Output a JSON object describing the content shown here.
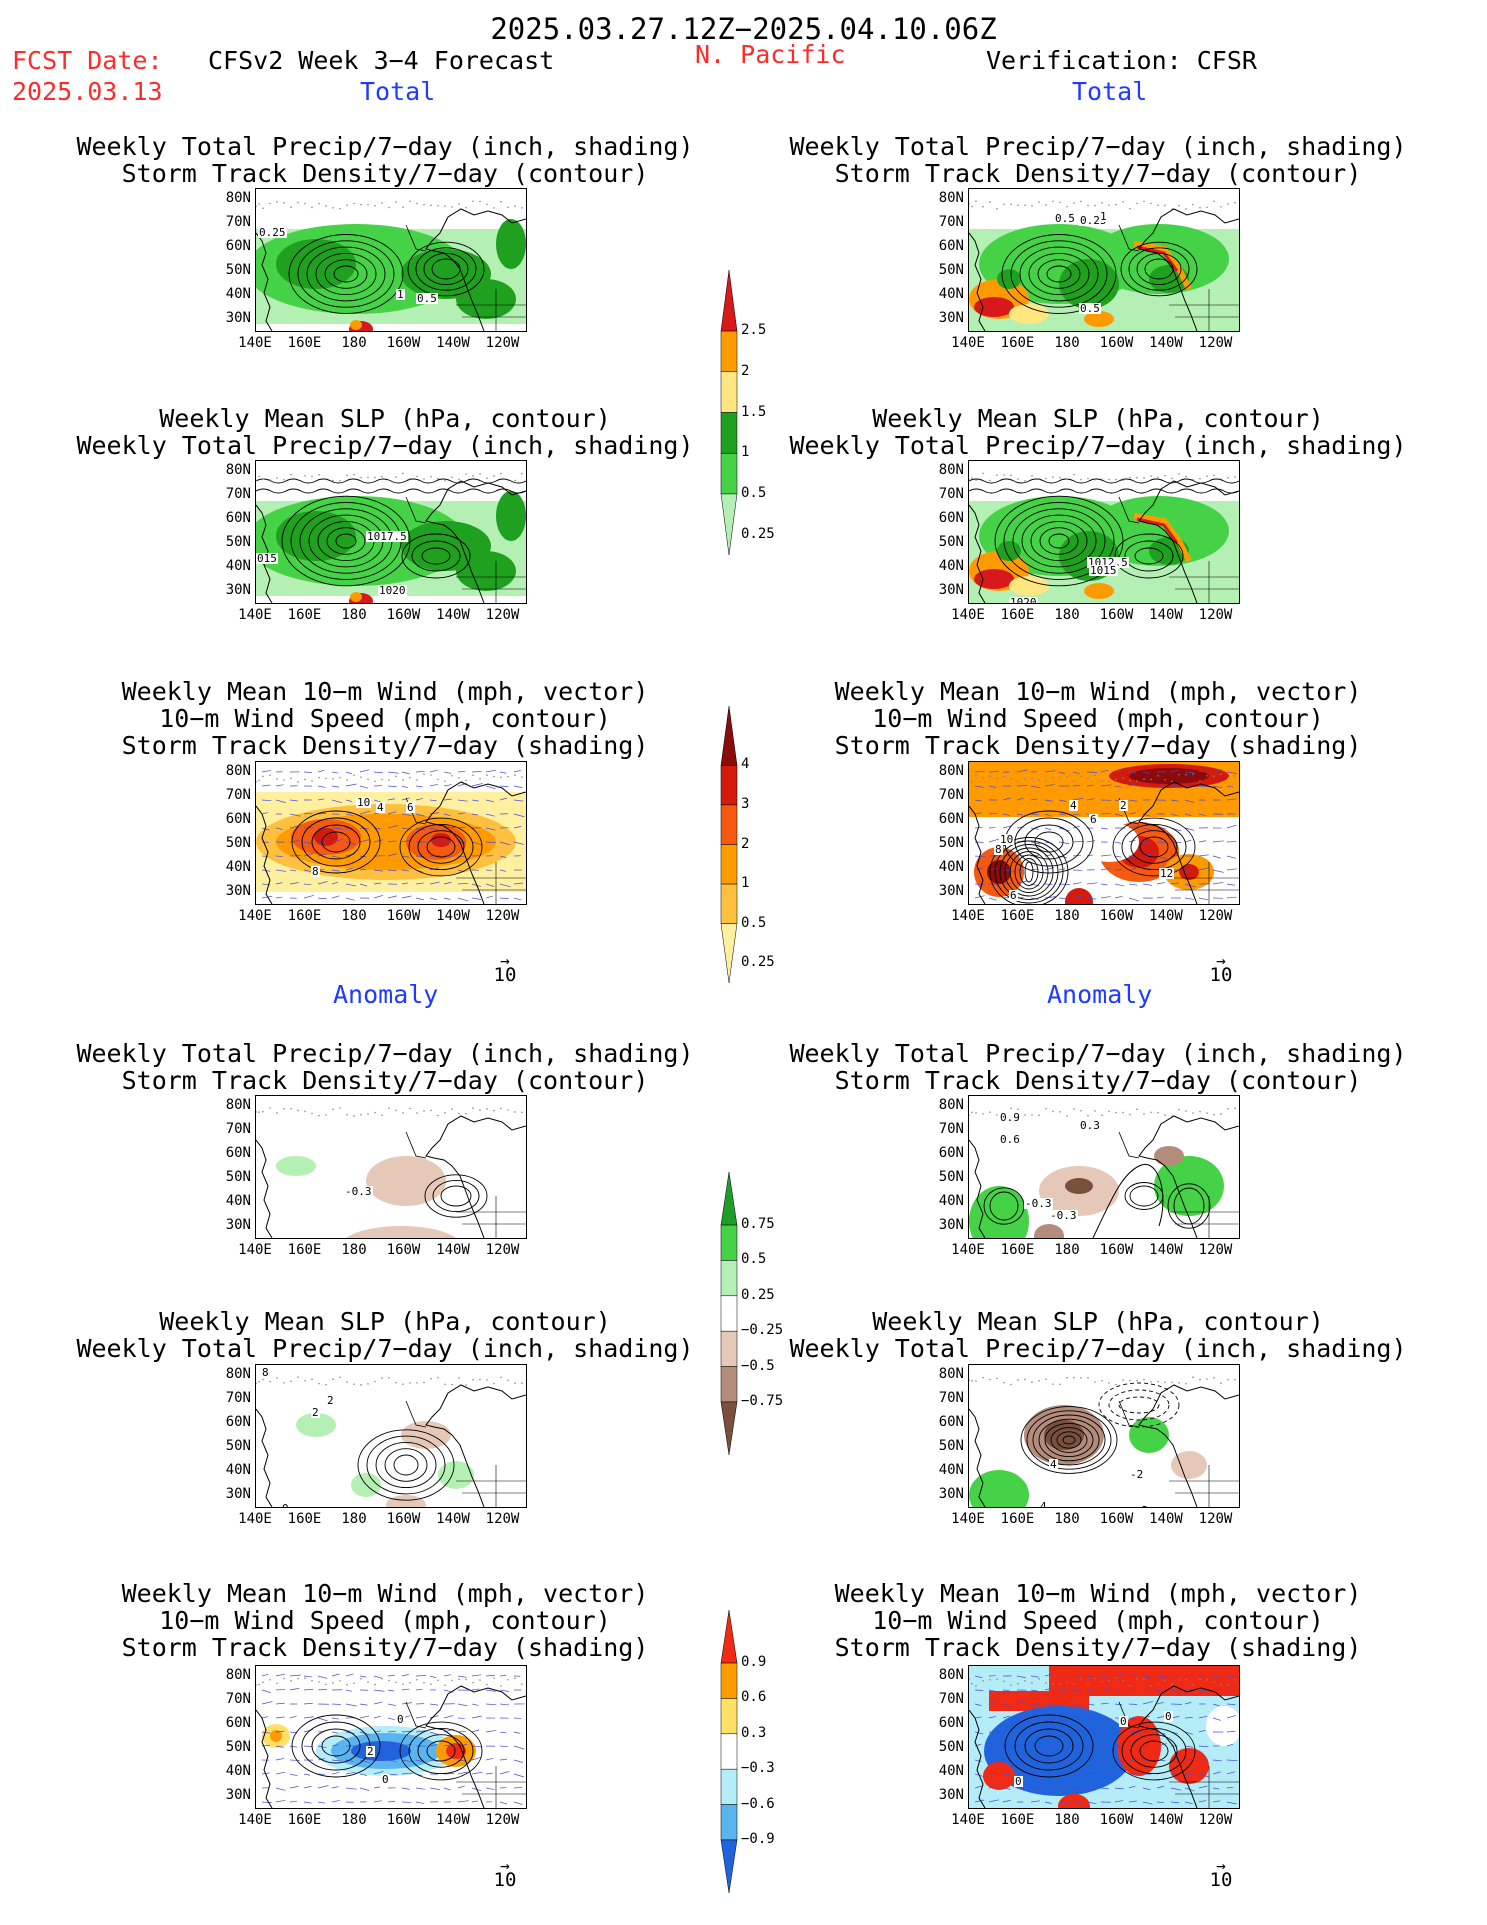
{
  "header": {
    "date_range": "2025.03.27.12Z−2025.04.10.06Z",
    "fcst_label": "FCST Date:",
    "fcst_date": "2025.03.13",
    "model_title": "CFSv2 Week 3−4 Forecast",
    "region": "N. Pacific",
    "verification": "Verification: CFSR"
  },
  "sections": {
    "total": "Total",
    "anomaly": "Anomaly"
  },
  "titles": {
    "precip_storm_1": "Weekly Total Precip/7−day (inch, shading)",
    "precip_storm_2": "Storm Track Density/7−day (contour)",
    "slp_precip_1": "Weekly Mean SLP (hPa, contour)",
    "slp_precip_2": "Weekly Total Precip/7−day (inch, shading)",
    "wind_1": "Weekly Mean 10−m Wind (mph, vector)",
    "wind_2": "10−m Wind Speed (mph, contour)",
    "wind_3": "Storm Track Density/7−day (shading)"
  },
  "axes": {
    "lat_labels": [
      "80N",
      "70N",
      "60N",
      "50N",
      "40N",
      "30N"
    ],
    "lon_labels": [
      "140E",
      "160E",
      "180",
      "160W",
      "140W",
      "120W"
    ]
  },
  "vector_ref": "10",
  "contour_labels": {
    "f_tot_precip": [
      "0.25",
      "1",
      "0.5"
    ],
    "v_tot_precip": [
      "0.5",
      "0.25",
      "1",
      "0.5"
    ],
    "f_tot_slp": [
      "1017.5",
      "015",
      "1020"
    ],
    "v_tot_slp": [
      "1012.5",
      "1015",
      "1020"
    ],
    "f_tot_wind": [
      "10",
      "4",
      "6",
      "8"
    ],
    "v_tot_wind": [
      "4",
      "2",
      "6",
      "10",
      "8",
      "6",
      "12"
    ],
    "f_anom_precip": [
      "-0.3"
    ],
    "v_anom_precip": [
      "0.9",
      "0.3",
      "0.6",
      "-0.3",
      "-0.3"
    ],
    "f_anom_slp": [
      "8",
      "2",
      "2",
      "0"
    ],
    "v_anom_slp": [
      "4",
      "-2",
      "-2",
      "4"
    ],
    "f_anom_wind": [
      "0",
      "2",
      "0"
    ],
    "v_anom_wind": [
      "0",
      "0",
      "0"
    ]
  },
  "colorbars": {
    "precip_total": {
      "labels": [
        "2.5",
        "2",
        "1.5",
        "1",
        "0.5",
        "0.25"
      ],
      "colors": [
        "#d7191c",
        "#ff9a00",
        "#ffe680",
        "#1fa01f",
        "#46d246",
        "#b4f0b4"
      ]
    },
    "storm_total": {
      "labels": [
        "4",
        "3",
        "2",
        "1",
        "0.5",
        "0.25"
      ],
      "colors": [
        "#8b0a0a",
        "#d41a0c",
        "#f55a10",
        "#ff9a00",
        "#ffc040",
        "#fff0a0"
      ]
    },
    "precip_anom": {
      "labels": [
        "0.75",
        "0.5",
        "0.25",
        "−0.25",
        "−0.5",
        "−0.75"
      ],
      "colors": [
        "#1e9e28",
        "#46d246",
        "#b4f0b4",
        "#ffffff",
        "#e6c8b8",
        "#b48c7c",
        "#78503c"
      ]
    },
    "storm_anom": {
      "labels": [
        "0.9",
        "0.6",
        "0.3",
        "−0.3",
        "−0.6",
        "−0.9"
      ],
      "colors": [
        "#f02a14",
        "#ff9a00",
        "#ffe066",
        "#ffffff",
        "#b4ecf8",
        "#5ab4f0",
        "#1f64dc"
      ]
    }
  },
  "colors": {
    "title_red": "#ff2b2b",
    "title_blue": "#1f3bff"
  }
}
